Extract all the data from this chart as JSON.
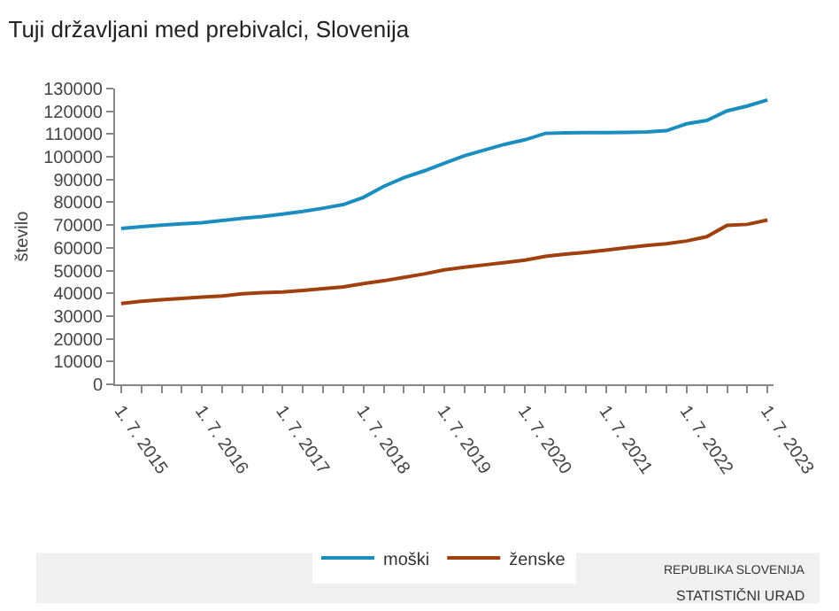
{
  "chart_data": {
    "type": "line",
    "title": "Tuji državljani med prebivalci, Slovenija",
    "ylabel": "število",
    "categories": [
      "1. 7. 2015",
      null,
      null,
      null,
      "1. 7. 2016",
      null,
      null,
      null,
      "1. 7. 2017",
      null,
      null,
      null,
      "1. 7. 2018",
      null,
      null,
      null,
      "1. 7. 2019",
      null,
      null,
      null,
      "1. 7. 2020",
      null,
      null,
      null,
      "1. 7. 2021",
      null,
      null,
      null,
      "1. 7. 2022",
      null,
      null,
      null,
      "1. 7. 2023"
    ],
    "series": [
      {
        "name": "moški",
        "color": "#1b8ebf",
        "values": [
          68500,
          69300,
          70000,
          70500,
          71000,
          72000,
          73000,
          73800,
          74800,
          76000,
          77400,
          79000,
          82200,
          87000,
          90800,
          93800,
          97200,
          100500,
          103000,
          105500,
          107500,
          110300,
          110500,
          110600,
          110600,
          110700,
          110900,
          111500,
          114500,
          116000,
          120200,
          122300,
          125000
        ]
      },
      {
        "name": "ženske",
        "color": "#a0400e",
        "values": [
          35500,
          36500,
          37200,
          37800,
          38300,
          38800,
          39800,
          40300,
          40600,
          41300,
          42000,
          42800,
          44300,
          45500,
          47000,
          48500,
          50300,
          51500,
          52500,
          53500,
          54600,
          56200,
          57200,
          58000,
          59000,
          60000,
          61000,
          61800,
          63000,
          64900,
          69900,
          70300,
          72200
        ]
      }
    ],
    "ylim": [
      0,
      130000
    ],
    "yticks": [
      0,
      10000,
      20000,
      30000,
      40000,
      50000,
      60000,
      70000,
      80000,
      90000,
      100000,
      110000,
      120000,
      130000
    ],
    "grid": false,
    "legend": "bottom",
    "marker": "none",
    "line_style": "solid",
    "annotations": [
      "REPUBLIKA SLOVENIJA",
      "STATISTIČNI URAD"
    ]
  }
}
